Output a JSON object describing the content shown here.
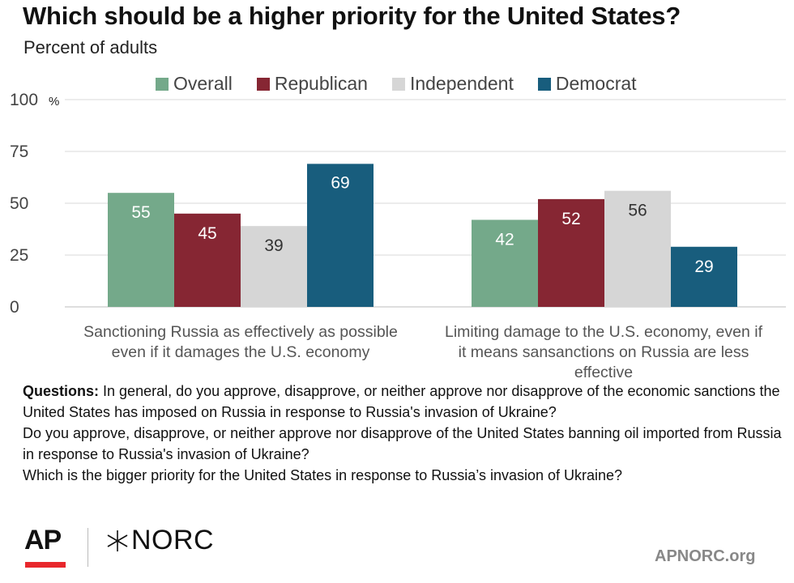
{
  "title": "Which should be a higher priority for the United States?",
  "subtitle": "Percent of adults",
  "colors": {
    "Overall": "#74a98a",
    "Republican": "#862633",
    "Independent": "#d6d6d6",
    "Democrat": "#185d7d"
  },
  "chart_data": {
    "type": "bar",
    "categories": [
      "Sanctioning Russia as effectively as possible even if it damages the U.S. economy",
      "Limiting damage to the U.S. economy, even if it means sansanctions on Russia are less effective"
    ],
    "series": [
      {
        "name": "Overall",
        "values": [
          55,
          42
        ]
      },
      {
        "name": "Republican",
        "values": [
          45,
          52
        ]
      },
      {
        "name": "Independent",
        "values": [
          39,
          56
        ]
      },
      {
        "name": "Democrat",
        "values": [
          69,
          29
        ]
      }
    ],
    "ylim": [
      0,
      100
    ],
    "yticks": [
      0,
      25,
      50,
      75,
      100
    ],
    "ytick_labels": [
      "0",
      "25",
      "50",
      "75",
      "100"
    ],
    "y_unit_label": "%",
    "grid": true,
    "legend_position": "top",
    "data_labels": true
  },
  "questions": {
    "label": "Questions:",
    "q1": "In general, do you approve, disapprove, or neither approve nor disapprove of the economic sanctions the United States has imposed on Russia in response to Russia's invasion of Ukraine?",
    "q2": "Do you approve, disapprove, or neither approve nor disapprove of the United States banning oil imported from Russia in response to Russia's invasion of Ukraine?",
    "q3": "Which is the bigger priority for the United States in response to Russia’s invasion of Ukraine?"
  },
  "footer": {
    "logo_ap": "AP",
    "logo_norc": "NORC",
    "url": "APNORC.org"
  }
}
